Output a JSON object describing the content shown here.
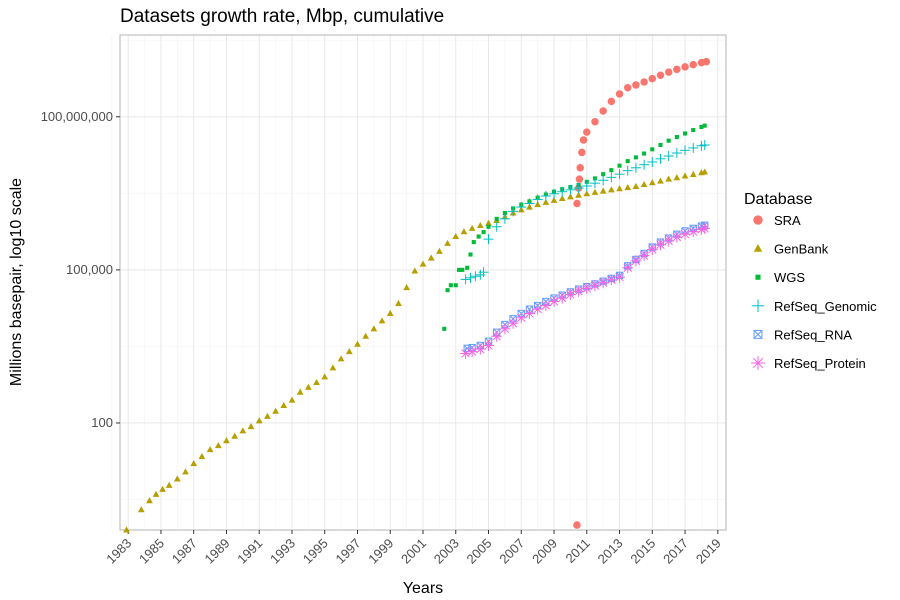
{
  "chart_data": {
    "type": "scatter",
    "title": "Datasets growth rate, Mbp, cumulative",
    "xlabel": "Years",
    "ylabel": "Millions basepair, log10 scale",
    "x_scale": "linear",
    "y_scale": "log10",
    "xlim": [
      1982.5,
      2019.5
    ],
    "ylim": [
      0.8,
      4000000000
    ],
    "x_ticks": [
      "1983",
      "1985",
      "1987",
      "1989",
      "1991",
      "1993",
      "1995",
      "1997",
      "1999",
      "2001",
      "2003",
      "2005",
      "2007",
      "2009",
      "2011",
      "2013",
      "2015",
      "2017",
      "2019"
    ],
    "y_ticks": [
      "100",
      "100,000",
      "100,000,000"
    ],
    "y_tick_values": [
      100,
      100000,
      100000000
    ],
    "grid": true,
    "legend": {
      "title": "Database",
      "placement": "right"
    },
    "series": [
      {
        "name": "SRA",
        "color": "#F8766D",
        "marker": "circle",
        "points": [
          [
            2010.4,
            1
          ],
          [
            2010.4,
            2000000
          ],
          [
            2010.5,
            4000000
          ],
          [
            2010.55,
            6000000
          ],
          [
            2010.6,
            10000000
          ],
          [
            2010.7,
            20000000
          ],
          [
            2010.8,
            35000000
          ],
          [
            2011.0,
            50000000
          ],
          [
            2011.5,
            80000000
          ],
          [
            2012.0,
            130000000
          ],
          [
            2012.5,
            200000000
          ],
          [
            2013.0,
            280000000
          ],
          [
            2013.5,
            370000000
          ],
          [
            2014.0,
            420000000
          ],
          [
            2014.5,
            480000000
          ],
          [
            2015.0,
            560000000
          ],
          [
            2015.5,
            650000000
          ],
          [
            2016.0,
            750000000
          ],
          [
            2016.5,
            850000000
          ],
          [
            2017.0,
            950000000
          ],
          [
            2017.5,
            1050000000
          ],
          [
            2018.0,
            1150000000
          ],
          [
            2018.3,
            1200000000
          ]
        ]
      },
      {
        "name": "GenBank",
        "color": "#B79F00",
        "marker": "triangle",
        "points": [
          [
            1982.9,
            0.7
          ],
          [
            1983.8,
            2
          ],
          [
            1984.3,
            3
          ],
          [
            1984.7,
            4
          ],
          [
            1985.1,
            5
          ],
          [
            1985.5,
            6
          ],
          [
            1986.0,
            8
          ],
          [
            1986.5,
            11
          ],
          [
            1987.0,
            16
          ],
          [
            1987.5,
            22
          ],
          [
            1988.0,
            30
          ],
          [
            1988.5,
            36
          ],
          [
            1989.0,
            45
          ],
          [
            1989.5,
            55
          ],
          [
            1990.0,
            70
          ],
          [
            1990.5,
            85
          ],
          [
            1991.0,
            110
          ],
          [
            1991.5,
            135
          ],
          [
            1992.0,
            170
          ],
          [
            1992.5,
            220
          ],
          [
            1993.0,
            280
          ],
          [
            1993.5,
            400
          ],
          [
            1994.0,
            500
          ],
          [
            1994.5,
            620
          ],
          [
            1995.0,
            800
          ],
          [
            1995.5,
            1200
          ],
          [
            1996.0,
            1800
          ],
          [
            1996.5,
            2500
          ],
          [
            1997.0,
            3500
          ],
          [
            1997.5,
            5000
          ],
          [
            1998.0,
            7000
          ],
          [
            1998.5,
            10000
          ],
          [
            1999.0,
            14000
          ],
          [
            1999.5,
            22000
          ],
          [
            2000.0,
            45000
          ],
          [
            2000.5,
            95000
          ],
          [
            2001.0,
            130000
          ],
          [
            2001.5,
            170000
          ],
          [
            2002.0,
            230000
          ],
          [
            2002.5,
            330000
          ],
          [
            2003.0,
            450000
          ],
          [
            2003.5,
            560000
          ],
          [
            2004.0,
            650000
          ],
          [
            2004.5,
            740000
          ],
          [
            2005.0,
            820000
          ],
          [
            2005.5,
            930000
          ],
          [
            2006.0,
            1100000
          ],
          [
            2006.5,
            1300000
          ],
          [
            2007.0,
            1500000
          ],
          [
            2007.5,
            1700000
          ],
          [
            2008.0,
            1900000
          ],
          [
            2008.5,
            2100000
          ],
          [
            2009.0,
            2300000
          ],
          [
            2009.5,
            2500000
          ],
          [
            2010.0,
            2700000
          ],
          [
            2010.5,
            2900000
          ],
          [
            2011.0,
            3100000
          ],
          [
            2011.5,
            3300000
          ],
          [
            2012.0,
            3500000
          ],
          [
            2012.5,
            3700000
          ],
          [
            2013.0,
            3900000
          ],
          [
            2013.5,
            4100000
          ],
          [
            2014.0,
            4300000
          ],
          [
            2014.5,
            4700000
          ],
          [
            2015.0,
            5100000
          ],
          [
            2015.5,
            5500000
          ],
          [
            2016.0,
            6000000
          ],
          [
            2016.5,
            6400000
          ],
          [
            2017.0,
            6900000
          ],
          [
            2017.5,
            7400000
          ],
          [
            2018.0,
            8000000
          ],
          [
            2018.2,
            8300000
          ]
        ]
      },
      {
        "name": "WGS",
        "color": "#00BA38",
        "marker": "square",
        "points": [
          [
            2002.3,
            7000
          ],
          [
            2002.5,
            40000
          ],
          [
            2002.7,
            50000
          ],
          [
            2003.0,
            50000
          ],
          [
            2003.2,
            100000
          ],
          [
            2003.4,
            100000
          ],
          [
            2003.7,
            110000
          ],
          [
            2003.9,
            200000
          ],
          [
            2004.1,
            350000
          ],
          [
            2004.4,
            450000
          ],
          [
            2004.7,
            550000
          ],
          [
            2005.0,
            700000
          ],
          [
            2005.5,
            1000000
          ],
          [
            2006.0,
            1300000
          ],
          [
            2006.5,
            1600000
          ],
          [
            2007.0,
            1900000
          ],
          [
            2007.5,
            2200000
          ],
          [
            2008.0,
            2600000
          ],
          [
            2008.5,
            3000000
          ],
          [
            2009.0,
            3400000
          ],
          [
            2009.5,
            3800000
          ],
          [
            2010.0,
            4200000
          ],
          [
            2010.5,
            4600000
          ],
          [
            2011.0,
            5300000
          ],
          [
            2011.5,
            6200000
          ],
          [
            2012.0,
            7500000
          ],
          [
            2012.5,
            9000000
          ],
          [
            2013.0,
            11000000
          ],
          [
            2013.5,
            13500000
          ],
          [
            2014.0,
            16000000
          ],
          [
            2014.5,
            19000000
          ],
          [
            2015.0,
            23000000
          ],
          [
            2015.5,
            28000000
          ],
          [
            2016.0,
            34000000
          ],
          [
            2016.5,
            40000000
          ],
          [
            2017.0,
            47000000
          ],
          [
            2017.5,
            55000000
          ],
          [
            2018.0,
            63000000
          ],
          [
            2018.2,
            67000000
          ]
        ]
      },
      {
        "name": "RefSeq_Genomic",
        "color": "#00BFC4",
        "marker": "plus",
        "points": [
          [
            2003.6,
            65000
          ],
          [
            2003.9,
            70000
          ],
          [
            2004.2,
            75000
          ],
          [
            2004.5,
            80000
          ],
          [
            2004.7,
            90000
          ],
          [
            2005.0,
            400000
          ],
          [
            2005.5,
            700000
          ],
          [
            2006.0,
            1000000
          ],
          [
            2006.5,
            1400000
          ],
          [
            2007.0,
            1700000
          ],
          [
            2007.5,
            2000000
          ],
          [
            2008.0,
            2400000
          ],
          [
            2008.5,
            2800000
          ],
          [
            2009.0,
            3100000
          ],
          [
            2009.5,
            3400000
          ],
          [
            2010.0,
            3700000
          ],
          [
            2010.5,
            4000000
          ],
          [
            2011.0,
            4400000
          ],
          [
            2011.5,
            5000000
          ],
          [
            2012.0,
            5700000
          ],
          [
            2012.5,
            6500000
          ],
          [
            2013.0,
            7500000
          ],
          [
            2013.5,
            8800000
          ],
          [
            2014.0,
            10000000
          ],
          [
            2014.5,
            11500000
          ],
          [
            2015.0,
            13000000
          ],
          [
            2015.5,
            15000000
          ],
          [
            2016.0,
            17000000
          ],
          [
            2016.5,
            19500000
          ],
          [
            2017.0,
            22000000
          ],
          [
            2017.5,
            24500000
          ],
          [
            2018.0,
            27000000
          ],
          [
            2018.2,
            28000000
          ]
        ]
      },
      {
        "name": "RefSeq_RNA",
        "color": "#619CFF",
        "marker": "boxed-x",
        "points": [
          [
            2003.7,
            2900
          ],
          [
            2004.0,
            3000
          ],
          [
            2004.5,
            3300
          ],
          [
            2005.0,
            4000
          ],
          [
            2005.5,
            6000
          ],
          [
            2006.0,
            8500
          ],
          [
            2006.5,
            11000
          ],
          [
            2007.0,
            14000
          ],
          [
            2007.5,
            17000
          ],
          [
            2008.0,
            20000
          ],
          [
            2008.5,
            24000
          ],
          [
            2009.0,
            28000
          ],
          [
            2009.5,
            32000
          ],
          [
            2010.0,
            37000
          ],
          [
            2010.5,
            42000
          ],
          [
            2011.0,
            47000
          ],
          [
            2011.5,
            53000
          ],
          [
            2012.0,
            60000
          ],
          [
            2012.5,
            68000
          ],
          [
            2013.0,
            78000
          ],
          [
            2013.5,
            120000
          ],
          [
            2014.0,
            160000
          ],
          [
            2014.5,
            210000
          ],
          [
            2015.0,
            280000
          ],
          [
            2015.5,
            350000
          ],
          [
            2016.0,
            420000
          ],
          [
            2016.5,
            500000
          ],
          [
            2017.0,
            580000
          ],
          [
            2017.5,
            650000
          ],
          [
            2018.0,
            720000
          ],
          [
            2018.2,
            750000
          ]
        ]
      },
      {
        "name": "RefSeq_Protein",
        "color": "#F564E3",
        "marker": "asterisk",
        "points": [
          [
            2003.6,
            2300
          ],
          [
            2004.0,
            2500
          ],
          [
            2004.5,
            2800
          ],
          [
            2005.0,
            3300
          ],
          [
            2005.5,
            5000
          ],
          [
            2006.0,
            7000
          ],
          [
            2006.5,
            9000
          ],
          [
            2007.0,
            11500
          ],
          [
            2007.5,
            14000
          ],
          [
            2008.0,
            17000
          ],
          [
            2008.5,
            20000
          ],
          [
            2009.0,
            24000
          ],
          [
            2009.5,
            28000
          ],
          [
            2010.0,
            33000
          ],
          [
            2010.5,
            38000
          ],
          [
            2011.0,
            43000
          ],
          [
            2011.5,
            49000
          ],
          [
            2012.0,
            56000
          ],
          [
            2012.5,
            64000
          ],
          [
            2013.0,
            72000
          ],
          [
            2013.5,
            110000
          ],
          [
            2014.0,
            150000
          ],
          [
            2014.5,
            190000
          ],
          [
            2015.0,
            250000
          ],
          [
            2015.5,
            310000
          ],
          [
            2016.0,
            370000
          ],
          [
            2016.5,
            440000
          ],
          [
            2017.0,
            500000
          ],
          [
            2017.5,
            560000
          ],
          [
            2018.0,
            620000
          ],
          [
            2018.2,
            650000
          ]
        ]
      }
    ]
  }
}
